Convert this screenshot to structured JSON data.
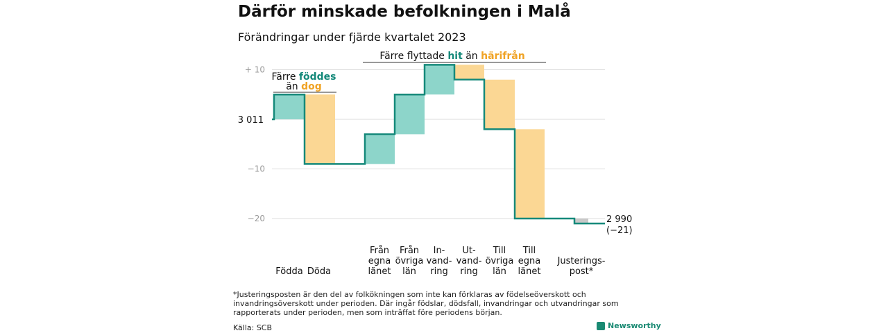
{
  "title": "Därför minskade befolkningen i Malå",
  "subtitle": "Förändringar under fjärde kvartalet 2023",
  "colors": {
    "in": "#8dd5ca",
    "out": "#fbd794",
    "line": "#15897a",
    "adjust": "#c8c8c8",
    "grid": "#dddddd",
    "accent_in": "#15897a",
    "accent_out": "#f0a325"
  },
  "annotations": {
    "births": {
      "line1": "Färre",
      "hl1": "föddes",
      "line2": "än",
      "hl2": "dog"
    },
    "migration": {
      "pre": "Färre flyttade",
      "hl1": "hit",
      "mid": "än",
      "hl2": "härifrån"
    }
  },
  "chart_data": {
    "type": "waterfall",
    "start_value": 3011,
    "start_label": "3 011",
    "end_label": "2 990",
    "end_change": "(−21)",
    "ylim": [
      -22,
      11
    ],
    "yticks": [
      {
        "value": 10,
        "label": "+  10"
      },
      {
        "value": 0,
        "label": ""
      },
      {
        "value": -10,
        "label": "−10"
      },
      {
        "value": -20,
        "label": "−20"
      }
    ],
    "steps": [
      {
        "label": [
          "Födda"
        ],
        "value": 5,
        "kind": "in"
      },
      {
        "label": [
          "Döda"
        ],
        "value": -14,
        "kind": "out"
      },
      {
        "label": [
          "Från",
          "egna",
          "länet"
        ],
        "value": 6,
        "kind": "in"
      },
      {
        "label": [
          "Från",
          "övriga",
          "län"
        ],
        "value": 8,
        "kind": "in"
      },
      {
        "label": [
          "In-",
          "vand-",
          "ring"
        ],
        "value": 6,
        "kind": "in"
      },
      {
        "label": [
          "Ut-",
          "vand-",
          "ring"
        ],
        "value": -3,
        "kind": "out"
      },
      {
        "label": [
          "Till",
          "övriga",
          "län"
        ],
        "value": -10,
        "kind": "out"
      },
      {
        "label": [
          "Till",
          "egna",
          "länet"
        ],
        "value": -18,
        "kind": "out"
      },
      {
        "label": [
          "Justerings-",
          "post*"
        ],
        "value": -1,
        "kind": "adjust"
      }
    ]
  },
  "footnote": "*Justeringsposten är den del av folkökningen som inte kan förklaras av födelseöverskott och invandringsöverskott under perioden. Där ingår födslar, dödsfall, invandringar och utvandringar som rapporterats under perioden, men som inträffat före periodens början.",
  "source": "Källa: SCB",
  "brand": "Newsworthy"
}
